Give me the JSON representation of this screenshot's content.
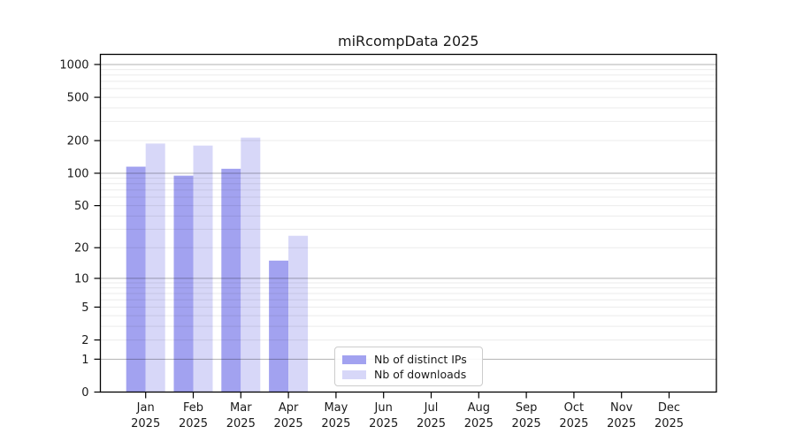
{
  "chart_data": {
    "type": "bar",
    "title": "miRcompData 2025",
    "categories": [
      "Jan",
      "Feb",
      "Mar",
      "Apr",
      "May",
      "Jun",
      "Jul",
      "Aug",
      "Sep",
      "Oct",
      "Nov",
      "Dec"
    ],
    "category_year_label": "2025",
    "series": [
      {
        "name": "Nb of distinct IPs",
        "color": "#a2a2f0",
        "values": [
          115,
          95,
          110,
          15,
          0,
          0,
          0,
          0,
          0,
          0,
          0,
          0
        ]
      },
      {
        "name": "Nb of downloads",
        "color": "#d7d7f8",
        "values": [
          188,
          180,
          213,
          26,
          0,
          0,
          0,
          0,
          0,
          0,
          0,
          0
        ]
      }
    ],
    "y_scale": "log10(1+x)",
    "y_ticks": [
      0,
      1,
      2,
      5,
      10,
      20,
      50,
      100,
      200,
      500,
      1000
    ],
    "y_major_gridlines": [
      1,
      10,
      100,
      1000
    ],
    "y_minor_gridline_mantissas": [
      2,
      3,
      4,
      5,
      6,
      7,
      8,
      9
    ],
    "ylim": [
      0,
      1250
    ],
    "legend_position": "bottom-center-inside",
    "colors": {
      "axis": "#000000",
      "text": "#1a1a1a",
      "grid_major": "#b3b3b3",
      "grid_minor": "#ebebeb",
      "background": "#ffffff"
    }
  }
}
